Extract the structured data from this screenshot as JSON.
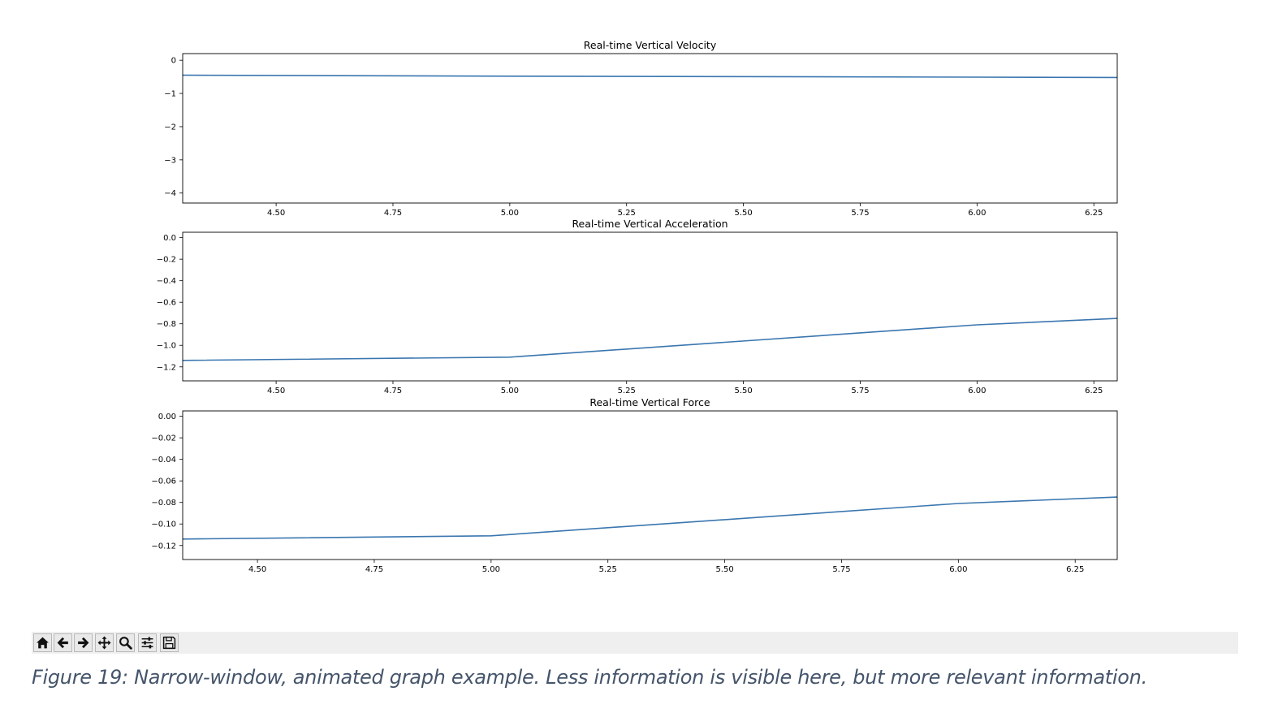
{
  "chart_data": [
    {
      "type": "line",
      "title": "Real-time Vertical Velocity",
      "xlabel": "",
      "ylabel": "",
      "xlim": [
        4.3,
        6.3
      ],
      "ylim": [
        -4.3,
        0.2
      ],
      "x_ticks": [
        4.5,
        4.75,
        5.0,
        5.25,
        5.5,
        5.75,
        6.0,
        6.25
      ],
      "x_tick_labels": [
        "4.50",
        "4.75",
        "5.00",
        "5.25",
        "5.50",
        "5.75",
        "6.00",
        "6.25"
      ],
      "y_ticks": [
        0,
        -1,
        -2,
        -3,
        -4
      ],
      "y_tick_labels": [
        "0",
        "−1",
        "−2",
        "−3",
        "−4"
      ],
      "series": [
        {
          "color": "#3a76af",
          "x": [
            4.3,
            5.0,
            6.0,
            6.3
          ],
          "y": [
            -0.45,
            -0.48,
            -0.51,
            -0.52
          ]
        }
      ],
      "grid": false
    },
    {
      "type": "line",
      "title": "Real-time Vertical Acceleration",
      "xlabel": "",
      "ylabel": "",
      "xlim": [
        4.3,
        6.3
      ],
      "ylim": [
        -1.33,
        0.05
      ],
      "x_ticks": [
        4.5,
        4.75,
        5.0,
        5.25,
        5.5,
        5.75,
        6.0,
        6.25
      ],
      "x_tick_labels": [
        "4.50",
        "4.75",
        "5.00",
        "5.25",
        "5.50",
        "5.75",
        "6.00",
        "6.25"
      ],
      "y_ticks": [
        0.0,
        -0.2,
        -0.4,
        -0.6,
        -0.8,
        -1.0,
        -1.2
      ],
      "y_tick_labels": [
        "0.0",
        "−0.2",
        "−0.4",
        "−0.6",
        "−0.8",
        "−1.0",
        "−1.2"
      ],
      "series": [
        {
          "color": "#3a76af",
          "x": [
            4.3,
            5.0,
            6.0,
            6.3
          ],
          "y": [
            -1.14,
            -1.11,
            -0.81,
            -0.75
          ]
        }
      ],
      "grid": false
    },
    {
      "type": "line",
      "title": "Real-time Vertical Force",
      "xlabel": "",
      "ylabel": "",
      "xlim": [
        4.34,
        6.34
      ],
      "ylim": [
        -0.133,
        0.005
      ],
      "x_ticks": [
        4.5,
        4.75,
        5.0,
        5.25,
        5.5,
        5.75,
        6.0,
        6.25
      ],
      "x_tick_labels": [
        "4.50",
        "4.75",
        "5.00",
        "5.25",
        "5.50",
        "5.75",
        "6.00",
        "6.25"
      ],
      "y_ticks": [
        0.0,
        -0.02,
        -0.04,
        -0.06,
        -0.08,
        -0.1,
        -0.12
      ],
      "y_tick_labels": [
        "0.00",
        "−0.02",
        "−0.04",
        "−0.06",
        "−0.08",
        "−0.10",
        "−0.12"
      ],
      "series": [
        {
          "color": "#3a76af",
          "x": [
            4.34,
            5.0,
            6.0,
            6.34
          ],
          "y": [
            -0.114,
            -0.111,
            -0.081,
            -0.075
          ]
        }
      ],
      "grid": false
    }
  ],
  "toolbar": {
    "buttons": [
      {
        "icon": "home-icon",
        "name": "home-button"
      },
      {
        "icon": "back-arrow-icon",
        "name": "back-button"
      },
      {
        "icon": "forward-arrow-icon",
        "name": "forward-button"
      },
      {
        "icon": "pan-move-icon",
        "name": "pan-button"
      },
      {
        "icon": "zoom-magnifier-icon",
        "name": "zoom-button"
      },
      {
        "icon": "subplot-config-icon",
        "name": "configure-subplots-button"
      },
      {
        "icon": "save-floppy-icon",
        "name": "save-button"
      }
    ]
  },
  "caption": "Figure 19: Narrow-window, animated graph example. Less information is visible here, but more relevant information."
}
